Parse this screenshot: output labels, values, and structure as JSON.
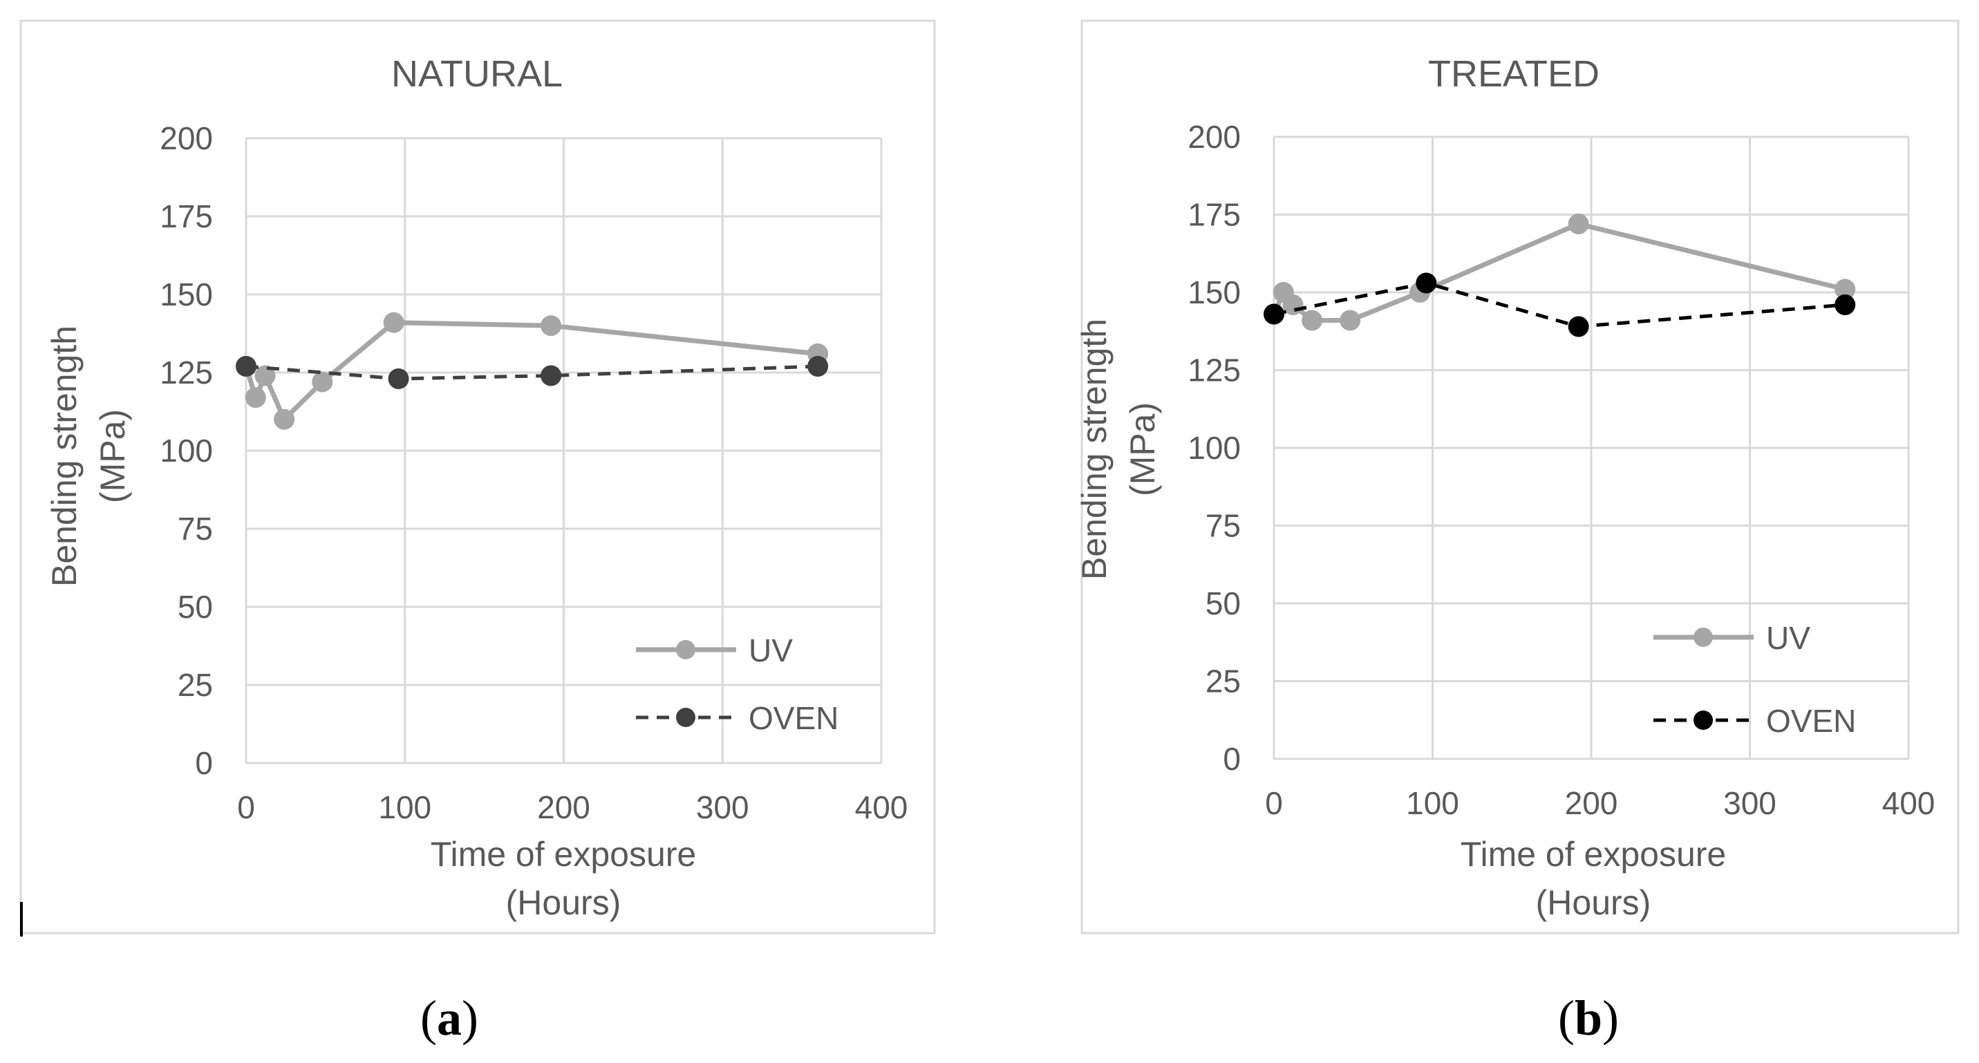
{
  "chart_data": [
    {
      "type": "line",
      "title": "NATURAL",
      "xlabel": [
        "Time of exposure",
        "(Hours)"
      ],
      "ylabel": [
        "Bending strength",
        "(MPa)"
      ],
      "xlim": [
        0,
        400
      ],
      "ylim": [
        0,
        200
      ],
      "xticks": [
        "0",
        "100",
        "200",
        "300",
        "400"
      ],
      "yticks": [
        "0",
        "25",
        "50",
        "75",
        "100",
        "125",
        "150",
        "175",
        "200"
      ],
      "grid": true,
      "legend_position": "bottom-right",
      "caption": {
        "open": "(",
        "letter": "a",
        "close": ")"
      },
      "series": [
        {
          "name": "UV",
          "color": "#a6a6a6",
          "style": "solid",
          "x": [
            0,
            6,
            12,
            24,
            48,
            93,
            192,
            360
          ],
          "y": [
            127,
            117,
            124,
            110,
            122,
            141,
            140,
            131
          ]
        },
        {
          "name": "OVEN",
          "color": "#404040",
          "style": "dashed",
          "x": [
            0,
            96,
            192,
            360
          ],
          "y": [
            127,
            123,
            124,
            127
          ]
        }
      ]
    },
    {
      "type": "line",
      "title": "TREATED",
      "xlabel": [
        "Time of exposure",
        "(Hours)"
      ],
      "ylabel": [
        "Bending strength",
        "(MPa)"
      ],
      "xlim": [
        0,
        400
      ],
      "ylim": [
        0,
        200
      ],
      "xticks": [
        "0",
        "100",
        "200",
        "300",
        "400"
      ],
      "yticks": [
        "0",
        "25",
        "50",
        "75",
        "100",
        "125",
        "150",
        "175",
        "200"
      ],
      "grid": true,
      "legend_position": "bottom-right",
      "caption": {
        "open": "(",
        "letter": "b",
        "close": ")"
      },
      "series": [
        {
          "name": "UV",
          "color": "#a6a6a6",
          "style": "solid",
          "x": [
            0,
            6,
            12,
            24,
            48,
            92,
            192,
            360
          ],
          "y": [
            143,
            150,
            146,
            141,
            141,
            150,
            172,
            151
          ]
        },
        {
          "name": "OVEN",
          "color": "#000000",
          "style": "dashed",
          "x": [
            0,
            96,
            192,
            360
          ],
          "y": [
            143,
            153,
            139,
            146
          ]
        }
      ]
    }
  ]
}
